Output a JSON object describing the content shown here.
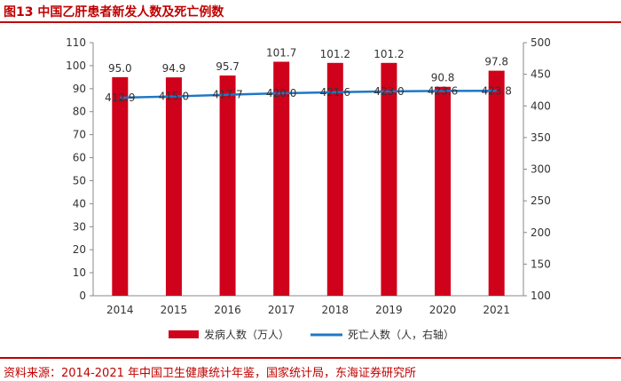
{
  "title": "图13 中国乙肝患者新发人数及死亡例数",
  "source": "资料来源：2014-2021 年中国卫生健康统计年鉴，国家统计局，东海证券研究所",
  "colors": {
    "bar": "#D0021B",
    "line": "#1F77C4",
    "accent": "#C00000",
    "axis": "#888888",
    "text": "#333333"
  },
  "chart_data": {
    "type": "bar",
    "categories": [
      "2014",
      "2015",
      "2016",
      "2017",
      "2018",
      "2019",
      "2020",
      "2021"
    ],
    "series": [
      {
        "name": "发病人数（万人）",
        "type": "bar",
        "axis": "left",
        "values": [
          95.0,
          94.9,
          95.7,
          101.7,
          101.2,
          101.2,
          90.8,
          97.8
        ],
        "labels": [
          "95.0",
          "94.9",
          "95.7",
          "101.7",
          "101.2",
          "101.2",
          "90.8",
          "97.8"
        ]
      },
      {
        "name": "死亡人数（人，右轴）",
        "type": "line",
        "axis": "right",
        "values": [
          412.9,
          415.0,
          417.7,
          420.0,
          421.6,
          423.0,
          423.6,
          423.8
        ],
        "labels": [
          "412.9",
          "415.0",
          "417.7",
          "420.0",
          "421.6",
          "423.0",
          "423.6",
          "423.8"
        ]
      }
    ],
    "y_left": {
      "min": 0,
      "max": 110,
      "step": 10,
      "ticks": [
        "0",
        "10",
        "20",
        "30",
        "40",
        "50",
        "60",
        "70",
        "80",
        "90",
        "100",
        "110"
      ]
    },
    "y_right": {
      "min": 100,
      "max": 500,
      "step": 50,
      "ticks": [
        "100",
        "150",
        "200",
        "250",
        "300",
        "350",
        "400",
        "450",
        "500"
      ]
    },
    "legend_position": "bottom",
    "grid": false
  }
}
